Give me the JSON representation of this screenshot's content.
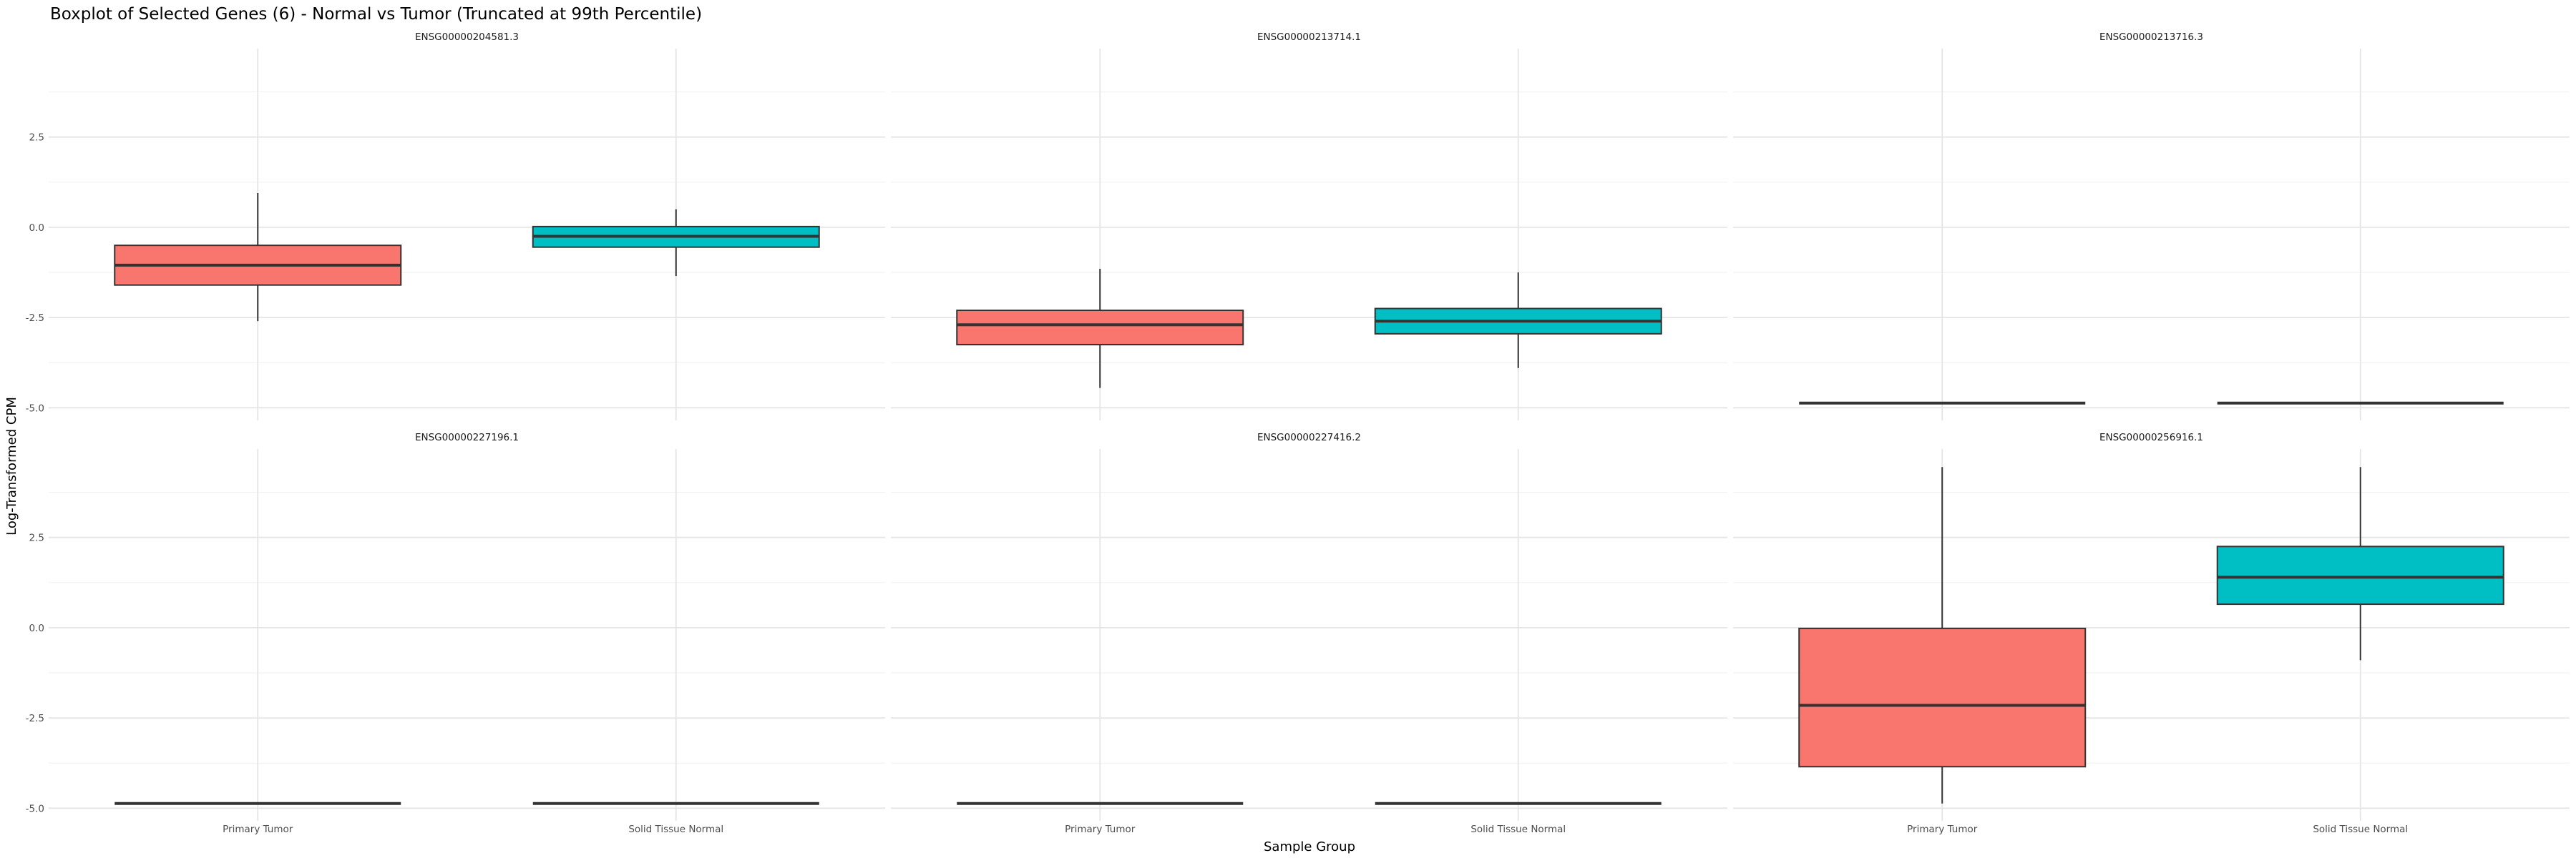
{
  "chart_data": {
    "type": "boxplot",
    "title": "Boxplot of Selected Genes (6) - Normal vs Tumor (Truncated at 99th Percentile)",
    "xlabel": "Sample Group",
    "ylabel": "Log-Transformed CPM",
    "ylim": [
      -5.35,
      4.95
    ],
    "yticks": [
      -5.0,
      -2.5,
      0.0,
      2.5
    ],
    "ytick_labels": [
      "-5.0",
      "-2.5",
      "0.0",
      "2.5"
    ],
    "categories": [
      "Primary Tumor",
      "Solid Tissue Normal"
    ],
    "colors": {
      "Primary Tumor": "#F8766D",
      "Solid Tissue Normal": "#00BFC4"
    },
    "grid": true,
    "legend": "none",
    "facets": [
      {
        "gene": "ENSG00000204581.3",
        "boxes": [
          {
            "group": "Primary Tumor",
            "min": -2.6,
            "q1": -1.6,
            "median": -1.05,
            "q3": -0.5,
            "max": 0.95
          },
          {
            "group": "Solid Tissue Normal",
            "min": -1.35,
            "q1": -0.55,
            "median": -0.25,
            "q3": 0.02,
            "max": 0.5
          }
        ]
      },
      {
        "gene": "ENSG00000213714.1",
        "boxes": [
          {
            "group": "Primary Tumor",
            "min": -4.45,
            "q1": -3.25,
            "median": -2.7,
            "q3": -2.3,
            "max": -1.15
          },
          {
            "group": "Solid Tissue Normal",
            "min": -3.9,
            "q1": -2.95,
            "median": -2.6,
            "q3": -2.25,
            "max": -1.25
          }
        ]
      },
      {
        "gene": "ENSG00000213716.3",
        "boxes": [
          {
            "group": "Primary Tumor",
            "min": -4.87,
            "q1": -4.87,
            "median": -4.87,
            "q3": -4.87,
            "max": -4.87
          },
          {
            "group": "Solid Tissue Normal",
            "min": -4.87,
            "q1": -4.87,
            "median": -4.87,
            "q3": -4.87,
            "max": -4.87
          }
        ]
      },
      {
        "gene": "ENSG00000227196.1",
        "boxes": [
          {
            "group": "Primary Tumor",
            "min": -4.87,
            "q1": -4.87,
            "median": -4.87,
            "q3": -4.87,
            "max": -4.87
          },
          {
            "group": "Solid Tissue Normal",
            "min": -4.87,
            "q1": -4.87,
            "median": -4.87,
            "q3": -4.87,
            "max": -4.87
          }
        ]
      },
      {
        "gene": "ENSG00000227416.2",
        "boxes": [
          {
            "group": "Primary Tumor",
            "min": -4.87,
            "q1": -4.87,
            "median": -4.87,
            "q3": -4.87,
            "max": -4.87
          },
          {
            "group": "Solid Tissue Normal",
            "min": -4.87,
            "q1": -4.87,
            "median": -4.87,
            "q3": -4.87,
            "max": -4.87
          }
        ]
      },
      {
        "gene": "ENSG00000256916.1",
        "boxes": [
          {
            "group": "Primary Tumor",
            "min": -4.87,
            "q1": -3.85,
            "median": -2.15,
            "q3": -0.02,
            "max": 4.45
          },
          {
            "group": "Solid Tissue Normal",
            "min": -0.9,
            "q1": 0.65,
            "median": 1.4,
            "q3": 2.25,
            "max": 4.45
          }
        ]
      }
    ]
  }
}
